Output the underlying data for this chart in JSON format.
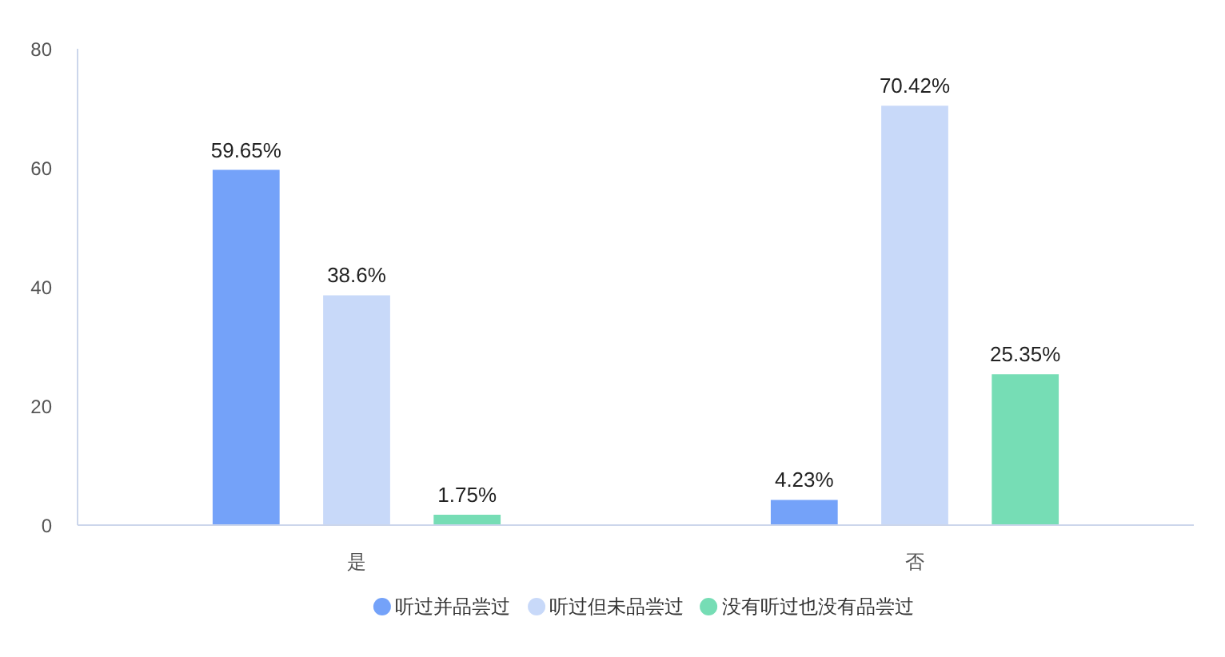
{
  "chart_data": {
    "type": "bar",
    "categories": [
      "是",
      "否"
    ],
    "series": [
      {
        "name": "听过并品尝过",
        "color": "#74a2f9",
        "values": [
          59.65,
          4.23
        ],
        "value_labels": [
          "59.65%",
          "4.23%"
        ]
      },
      {
        "name": "听过但未品尝过",
        "color": "#c8d9f9",
        "values": [
          38.6,
          70.42
        ],
        "value_labels": [
          "38.6%",
          "70.42%"
        ]
      },
      {
        "name": "没有听过也没有品尝过",
        "color": "#76ddb5",
        "values": [
          1.75,
          25.35
        ],
        "value_labels": [
          "1.75%",
          "25.35%"
        ]
      }
    ],
    "ylim": [
      0,
      80
    ],
    "yticks": [
      0,
      20,
      40,
      60,
      80
    ],
    "grid": false,
    "legend": "bottom"
  }
}
